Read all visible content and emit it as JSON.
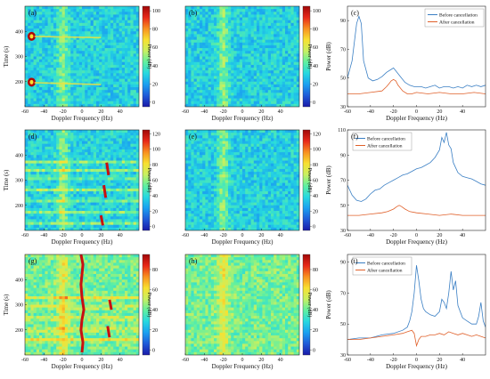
{
  "chart_data": [
    {
      "id": "a",
      "panel_label": "(a)",
      "type": "heatmap",
      "xlabel": "Doppler Frequency (Hz)",
      "ylabel": "Time (s)",
      "xlim": [
        -60,
        60
      ],
      "ylim": [
        100,
        500
      ],
      "x_ticks": [
        -60,
        -40,
        -20,
        0,
        20,
        40
      ],
      "y_ticks": [
        200,
        300,
        400
      ],
      "colorbar": {
        "label": "Power (dB)",
        "ticks": [
          0,
          20,
          40,
          60,
          80,
          100
        ],
        "range": [
          -5,
          105
        ]
      },
      "features": [
        {
          "kind": "clutter-band",
          "freq": -20
        },
        {
          "kind": "hot-spot",
          "freq": -53,
          "time": 380
        },
        {
          "kind": "hot-spot",
          "freq": -53,
          "time": 198
        },
        {
          "kind": "track",
          "points": [
            [
              -50,
              380
            ],
            [
              20,
              375
            ]
          ]
        },
        {
          "kind": "track",
          "points": [
            [
              -50,
              196
            ],
            [
              20,
              188
            ]
          ]
        }
      ]
    },
    {
      "id": "b",
      "panel_label": "(b)",
      "type": "heatmap",
      "xlabel": "Doppler Frequency (Hz)",
      "ylabel": "",
      "xlim": [
        -60,
        60
      ],
      "ylim": [
        100,
        500
      ],
      "x_ticks": [
        -60,
        -40,
        -20,
        0,
        20,
        40
      ],
      "y_ticks": [],
      "colorbar": {
        "label": "Power (dB)",
        "ticks": [
          0,
          20,
          40,
          60,
          80,
          100
        ],
        "range": [
          -5,
          105
        ]
      },
      "features": [
        {
          "kind": "clutter-band",
          "freq": -20
        }
      ]
    },
    {
      "id": "c",
      "panel_label": "(c)",
      "type": "line",
      "xlabel": "Doppler Frequency (Hz)",
      "ylabel": "Power (dB)",
      "xlim": [
        -60,
        60
      ],
      "ylim": [
        30,
        100
      ],
      "x_ticks": [
        -60,
        -40,
        -20,
        0,
        20,
        40
      ],
      "y_ticks": [
        30,
        50,
        70,
        90
      ],
      "legend": "top-right",
      "series": [
        {
          "name": "Before cancellation",
          "color": "#3a7fc4",
          "x": [
            -60,
            -56,
            -52,
            -50,
            -48,
            -46,
            -42,
            -38,
            -34,
            -30,
            -26,
            -22,
            -20,
            -18,
            -14,
            -10,
            -6,
            -2,
            0,
            4,
            8,
            12,
            16,
            20,
            24,
            28,
            32,
            36,
            40,
            44,
            48,
            52,
            56,
            60
          ],
          "y": [
            50,
            62,
            88,
            93,
            88,
            62,
            50,
            48,
            49,
            51,
            54,
            56,
            57,
            55,
            51,
            47,
            45,
            44,
            44,
            44,
            43,
            44,
            45,
            43,
            44,
            44,
            43,
            44,
            43,
            45,
            44,
            45,
            44,
            45
          ]
        },
        {
          "name": "After cancellation",
          "color": "#e0602a",
          "x": [
            -60,
            -50,
            -40,
            -30,
            -26,
            -24,
            -22,
            -20,
            -18,
            -16,
            -12,
            -8,
            -4,
            0,
            10,
            20,
            30,
            40,
            50,
            60
          ],
          "y": [
            39,
            39,
            40,
            41,
            44,
            46,
            48,
            49,
            48,
            45,
            41,
            39,
            39,
            40,
            39,
            40,
            39,
            39,
            40,
            39
          ]
        }
      ]
    },
    {
      "id": "d",
      "panel_label": "(d)",
      "type": "heatmap",
      "xlabel": "Doppler Frequency (Hz)",
      "ylabel": "Time (s)",
      "xlim": [
        -60,
        60
      ],
      "ylim": [
        100,
        500
      ],
      "x_ticks": [
        -60,
        -40,
        -20,
        0,
        20,
        40
      ],
      "y_ticks": [
        200,
        300,
        400
      ],
      "colorbar": {
        "label": "Power (dB)",
        "ticks": [
          0,
          20,
          40,
          60,
          80,
          100,
          120
        ],
        "range": [
          -5,
          125
        ]
      },
      "features": [
        {
          "kind": "clutter-band",
          "freq": -20
        },
        {
          "kind": "streak",
          "freq": 27,
          "time_range": [
            320,
            370
          ]
        },
        {
          "kind": "streak",
          "freq": 24,
          "time_range": [
            230,
            280
          ]
        },
        {
          "kind": "streak",
          "freq": 21,
          "time_range": [
            120,
            160
          ]
        },
        {
          "kind": "horizontal-band",
          "times": [
            370,
            340,
            310,
            260,
            220,
            170,
            130
          ]
        }
      ]
    },
    {
      "id": "e",
      "panel_label": "(e)",
      "type": "heatmap",
      "xlabel": "Doppler Frequency (Hz)",
      "ylabel": "",
      "xlim": [
        -60,
        60
      ],
      "ylim": [
        100,
        500
      ],
      "x_ticks": [
        -60,
        -40,
        -20,
        0,
        20,
        40
      ],
      "y_ticks": [],
      "colorbar": {
        "label": "Power (dB)",
        "ticks": [
          0,
          20,
          40,
          60,
          80,
          100,
          120
        ],
        "range": [
          -5,
          125
        ]
      },
      "features": [
        {
          "kind": "clutter-band",
          "freq": -20
        }
      ]
    },
    {
      "id": "f",
      "panel_label": "(f)",
      "type": "line",
      "xlabel": "Doppler Frequency (Hz)",
      "ylabel": "Power (dB)",
      "xlim": [
        -60,
        60
      ],
      "ylim": [
        30,
        110
      ],
      "x_ticks": [
        -60,
        -40,
        -20,
        0,
        20,
        40
      ],
      "y_ticks": [
        30,
        50,
        70,
        90,
        110
      ],
      "legend": "top-left",
      "series": [
        {
          "name": "Before cancellation",
          "color": "#3a7fc4",
          "x": [
            -60,
            -56,
            -52,
            -48,
            -44,
            -40,
            -36,
            -32,
            -28,
            -24,
            -20,
            -16,
            -12,
            -8,
            -4,
            0,
            4,
            8,
            12,
            16,
            20,
            22,
            24,
            26,
            28,
            30,
            32,
            34,
            36,
            40,
            44,
            48,
            52,
            56,
            60
          ],
          "y": [
            66,
            58,
            54,
            53,
            55,
            59,
            62,
            63,
            66,
            68,
            70,
            72,
            74,
            75,
            77,
            79,
            80,
            82,
            84,
            88,
            94,
            104,
            100,
            108,
            98,
            95,
            84,
            80,
            76,
            73,
            72,
            71,
            69,
            67,
            66
          ]
        },
        {
          "name": "After cancellation",
          "color": "#e0602a",
          "x": [
            -60,
            -50,
            -40,
            -30,
            -25,
            -20,
            -17,
            -15,
            -13,
            -10,
            -6,
            0,
            10,
            20,
            30,
            40,
            50,
            60
          ],
          "y": [
            42,
            42,
            43,
            44,
            45,
            47,
            49,
            50,
            49,
            47,
            45,
            44,
            43,
            42,
            43,
            42,
            42,
            42
          ]
        }
      ]
    },
    {
      "id": "g",
      "panel_label": "(g)",
      "type": "heatmap",
      "xlabel": "Doppler Frequency (Hz)",
      "ylabel": "Time (s)",
      "xlim": [
        -60,
        60
      ],
      "ylim": [
        100,
        500
      ],
      "x_ticks": [
        -60,
        -40,
        -20,
        0,
        20,
        40
      ],
      "y_ticks": [
        200,
        300,
        400
      ],
      "colorbar": {
        "label": "Power (dB)",
        "ticks": [
          0,
          20,
          40,
          60,
          80
        ],
        "range": [
          -5,
          95
        ]
      },
      "features": [
        {
          "kind": "clutter-band",
          "freq": -20
        },
        {
          "kind": "curve",
          "points": [
            [
              -1,
              500
            ],
            [
              1,
              460
            ],
            [
              0,
              420
            ],
            [
              -1,
              380
            ],
            [
              0,
              330
            ],
            [
              2,
              280
            ],
            [
              0,
              240
            ],
            [
              -1,
              200
            ],
            [
              1,
              150
            ],
            [
              0,
              110
            ]
          ]
        },
        {
          "kind": "streak",
          "freq": 30,
          "time_range": [
            280,
            320
          ]
        },
        {
          "kind": "streak",
          "freq": 28,
          "time_range": [
            170,
            215
          ]
        },
        {
          "kind": "horizontal-band",
          "times": [
            330,
            290,
            245,
            200,
            160
          ]
        }
      ]
    },
    {
      "id": "h",
      "panel_label": "(h)",
      "type": "heatmap",
      "xlabel": "Doppler Frequency (Hz)",
      "ylabel": "",
      "xlim": [
        -60,
        60
      ],
      "ylim": [
        100,
        500
      ],
      "x_ticks": [
        -60,
        -40,
        -20,
        0,
        20,
        40
      ],
      "y_ticks": [],
      "colorbar": {
        "label": "Power (dB)",
        "ticks": [
          0,
          20,
          40,
          60,
          80
        ],
        "range": [
          -5,
          95
        ]
      },
      "features": [
        {
          "kind": "clutter-band",
          "freq": -20
        }
      ]
    },
    {
      "id": "i",
      "panel_label": "(i)",
      "type": "line",
      "xlabel": "Doppler Frequency (Hz)",
      "ylabel": "Power (dB)",
      "xlim": [
        -60,
        60
      ],
      "ylim": [
        30,
        95
      ],
      "x_ticks": [
        -60,
        -40,
        -20,
        0,
        20,
        40
      ],
      "y_ticks": [
        30,
        50,
        70,
        90
      ],
      "legend": "top-left",
      "series": [
        {
          "name": "Before cancellation",
          "color": "#3a7fc4",
          "x": [
            -60,
            -50,
            -40,
            -30,
            -20,
            -12,
            -8,
            -6,
            -4,
            -2,
            0,
            2,
            4,
            6,
            8,
            12,
            16,
            20,
            22,
            24,
            26,
            28,
            30,
            32,
            34,
            36,
            40,
            44,
            48,
            52,
            54,
            56,
            58,
            60
          ],
          "y": [
            40,
            41,
            41,
            43,
            44,
            46,
            48,
            52,
            58,
            70,
            88,
            78,
            66,
            60,
            58,
            56,
            55,
            58,
            66,
            64,
            60,
            70,
            84,
            72,
            78,
            62,
            54,
            52,
            50,
            50,
            55,
            64,
            52,
            48
          ]
        },
        {
          "name": "After cancellation",
          "color": "#e0602a",
          "x": [
            -60,
            -50,
            -40,
            -30,
            -20,
            -12,
            -8,
            -4,
            -2,
            0,
            2,
            4,
            8,
            12,
            16,
            20,
            24,
            28,
            32,
            36,
            40,
            44,
            48,
            52,
            56,
            60
          ],
          "y": [
            40,
            40,
            41,
            42,
            43,
            44,
            45,
            46,
            44,
            36,
            40,
            42,
            42,
            43,
            43,
            44,
            43,
            45,
            44,
            43,
            44,
            43,
            42,
            43,
            42,
            41
          ]
        }
      ]
    }
  ],
  "colors": {
    "before": "#3a7fc4",
    "after": "#e0602a",
    "colormap_stops": [
      "#1a1aa8",
      "#1f5ad8",
      "#1aa0f0",
      "#26d8e0",
      "#60f0a0",
      "#c8f060",
      "#f8e030",
      "#f89020",
      "#e82818",
      "#a00808"
    ]
  }
}
